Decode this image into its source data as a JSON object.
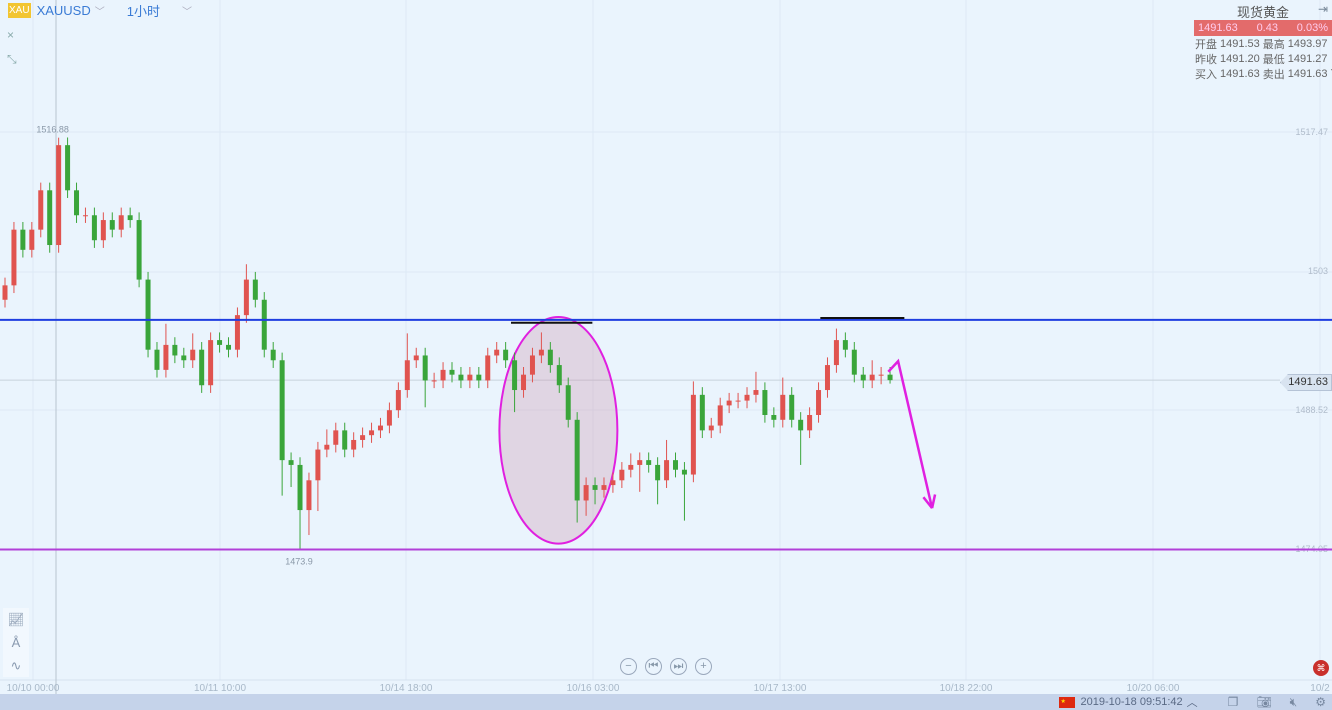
{
  "header": {
    "badge": "XAU",
    "symbol": "XAUUSD",
    "timeframe": "1小时"
  },
  "left_tools": {
    "close": "×",
    "collapse": "⤡"
  },
  "dock": {
    "items": [
      "indicator-icon",
      "drawing-icon",
      "wave-icon"
    ]
  },
  "quote": {
    "title": "现货黄金",
    "price": "1491.63",
    "change": "0.43",
    "change_pct": "0.03%",
    "rows": [
      {
        "l1": "开盘",
        "v1": "1491.53",
        "l2": "最高",
        "v2": "1493.97"
      },
      {
        "l1": "昨收",
        "v1": "1491.20",
        "l2": "最低",
        "v2": "1491.27"
      },
      {
        "l1": "买入",
        "v1": "1491.63",
        "l2": "卖出",
        "v2": "1491.63"
      }
    ]
  },
  "zoom_controls": [
    "−",
    "⏮",
    "⏭",
    "+"
  ],
  "status": {
    "datetime": "2019-10-18 09:51:42"
  },
  "colors": {
    "up": "#e0534f",
    "down": "#3aa53a",
    "accent": "#3a7bd5"
  },
  "chart_data": {
    "type": "candlestick",
    "symbol": "XAUUSD",
    "interval": "1小时",
    "x_ticks": [
      "10/10 00:00",
      "10/11 10:00",
      "10/14 18:00",
      "10/16 03:00",
      "10/17 13:00",
      "10/18 22:00",
      "10/20 06:00",
      "10/2"
    ],
    "y_ticks": [
      "1517.47",
      "1503",
      "1488.52",
      "1474.05"
    ],
    "ylim": [
      1472.5,
      1531.2
    ],
    "high_label": "1516.88",
    "low_label": "1473.9",
    "last_price": "1491.63",
    "grid": true,
    "ohlc": [
      [
        1500.0,
        1502.3,
        1499.2,
        1501.5
      ],
      [
        1501.5,
        1508.1,
        1500.7,
        1507.3
      ],
      [
        1507.3,
        1508.1,
        1504.4,
        1505.2
      ],
      [
        1505.2,
        1508.1,
        1504.4,
        1507.3
      ],
      [
        1507.3,
        1512.2,
        1506.5,
        1511.4
      ],
      [
        1511.4,
        1512.2,
        1504.9,
        1505.7
      ],
      [
        1505.7,
        1516.88,
        1504.9,
        1516.1
      ],
      [
        1516.1,
        1516.9,
        1510.6,
        1511.4
      ],
      [
        1511.4,
        1512.2,
        1508.0,
        1508.8
      ],
      [
        1508.8,
        1509.6,
        1508.0,
        1508.8
      ],
      [
        1508.8,
        1509.6,
        1505.4,
        1506.2
      ],
      [
        1506.2,
        1509.1,
        1505.4,
        1508.3
      ],
      [
        1508.3,
        1509.1,
        1506.5,
        1507.3
      ],
      [
        1507.3,
        1509.6,
        1506.5,
        1508.8
      ],
      [
        1508.8,
        1509.6,
        1507.5,
        1508.3
      ],
      [
        1508.3,
        1509.1,
        1501.3,
        1502.1
      ],
      [
        1502.1,
        1502.9,
        1494.0,
        1494.8
      ],
      [
        1494.8,
        1495.6,
        1491.9,
        1492.7
      ],
      [
        1492.7,
        1497.5,
        1491.9,
        1495.3
      ],
      [
        1495.3,
        1496.1,
        1493.4,
        1494.2
      ],
      [
        1494.2,
        1495.0,
        1492.9,
        1493.7
      ],
      [
        1493.7,
        1496.5,
        1492.9,
        1494.8
      ],
      [
        1494.8,
        1495.6,
        1490.3,
        1491.1
      ],
      [
        1491.1,
        1496.6,
        1490.3,
        1495.8
      ],
      [
        1495.8,
        1496.6,
        1494.5,
        1495.3
      ],
      [
        1495.3,
        1496.1,
        1494.0,
        1494.8
      ],
      [
        1494.8,
        1499.2,
        1494.0,
        1498.4
      ],
      [
        1498.4,
        1503.7,
        1497.6,
        1502.1
      ],
      [
        1502.1,
        1502.9,
        1499.2,
        1500.0
      ],
      [
        1500.0,
        1500.8,
        1494.0,
        1494.8
      ],
      [
        1494.8,
        1495.6,
        1492.9,
        1493.7
      ],
      [
        1493.7,
        1494.5,
        1479.6,
        1483.3
      ],
      [
        1483.3,
        1484.1,
        1480.5,
        1482.8
      ],
      [
        1482.8,
        1483.6,
        1473.9,
        1478.1
      ],
      [
        1478.1,
        1482.0,
        1475.5,
        1481.2
      ],
      [
        1481.2,
        1485.2,
        1478.0,
        1484.4
      ],
      [
        1484.4,
        1486.5,
        1483.6,
        1484.9
      ],
      [
        1484.9,
        1487.2,
        1484.1,
        1486.4
      ],
      [
        1486.4,
        1487.2,
        1483.6,
        1484.4
      ],
      [
        1484.4,
        1486.2,
        1483.6,
        1485.4
      ],
      [
        1485.4,
        1486.7,
        1484.6,
        1485.9
      ],
      [
        1485.9,
        1487.2,
        1485.1,
        1486.4
      ],
      [
        1486.4,
        1487.7,
        1485.6,
        1486.9
      ],
      [
        1486.9,
        1489.3,
        1486.1,
        1488.5
      ],
      [
        1488.5,
        1491.4,
        1487.7,
        1490.6
      ],
      [
        1490.6,
        1496.5,
        1489.8,
        1493.7
      ],
      [
        1493.7,
        1495.0,
        1492.9,
        1494.2
      ],
      [
        1494.2,
        1495.0,
        1488.8,
        1491.6
      ],
      [
        1491.6,
        1492.4,
        1490.8,
        1491.6
      ],
      [
        1491.6,
        1493.5,
        1490.8,
        1492.7
      ],
      [
        1492.7,
        1493.5,
        1491.4,
        1492.2
      ],
      [
        1492.2,
        1493.0,
        1490.8,
        1491.6
      ],
      [
        1491.6,
        1493.0,
        1490.8,
        1492.2
      ],
      [
        1492.2,
        1493.0,
        1490.8,
        1491.6
      ],
      [
        1491.6,
        1495.0,
        1490.8,
        1494.2
      ],
      [
        1494.2,
        1495.6,
        1493.4,
        1494.8
      ],
      [
        1494.8,
        1495.6,
        1492.9,
        1493.7
      ],
      [
        1493.7,
        1494.5,
        1488.3,
        1490.6
      ],
      [
        1490.6,
        1493.0,
        1489.8,
        1492.2
      ],
      [
        1492.2,
        1495.0,
        1491.4,
        1494.2
      ],
      [
        1494.2,
        1496.6,
        1493.4,
        1494.8
      ],
      [
        1494.8,
        1495.6,
        1492.4,
        1493.2
      ],
      [
        1493.2,
        1494.0,
        1490.3,
        1491.1
      ],
      [
        1491.1,
        1491.9,
        1486.7,
        1487.5
      ],
      [
        1487.5,
        1488.3,
        1476.8,
        1479.1
      ],
      [
        1479.1,
        1481.5,
        1477.5,
        1480.7
      ],
      [
        1480.7,
        1481.5,
        1478.7,
        1480.2
      ],
      [
        1480.2,
        1481.5,
        1479.4,
        1480.7
      ],
      [
        1480.7,
        1482.0,
        1479.9,
        1481.2
      ],
      [
        1481.2,
        1483.1,
        1480.4,
        1482.3
      ],
      [
        1482.3,
        1484.0,
        1481.5,
        1482.8
      ],
      [
        1482.8,
        1484.1,
        1480.0,
        1483.3
      ],
      [
        1483.3,
        1484.1,
        1482.0,
        1482.8
      ],
      [
        1482.8,
        1483.6,
        1478.7,
        1481.2
      ],
      [
        1481.2,
        1485.4,
        1480.4,
        1483.3
      ],
      [
        1483.3,
        1484.1,
        1481.5,
        1482.3
      ],
      [
        1482.3,
        1483.1,
        1477.0,
        1481.8
      ],
      [
        1481.8,
        1491.5,
        1481.0,
        1490.1
      ],
      [
        1490.1,
        1490.9,
        1485.6,
        1486.4
      ],
      [
        1486.4,
        1487.7,
        1485.6,
        1486.9
      ],
      [
        1486.9,
        1489.8,
        1486.1,
        1489.0
      ],
      [
        1489.0,
        1490.3,
        1488.2,
        1489.5
      ],
      [
        1489.5,
        1490.3,
        1488.7,
        1489.5
      ],
      [
        1489.5,
        1490.9,
        1488.7,
        1490.1
      ],
      [
        1490.1,
        1492.5,
        1489.3,
        1490.6
      ],
      [
        1490.6,
        1491.4,
        1487.2,
        1488.0
      ],
      [
        1488.0,
        1488.8,
        1486.7,
        1487.5
      ],
      [
        1487.5,
        1491.9,
        1486.7,
        1490.1
      ],
      [
        1490.1,
        1490.9,
        1486.7,
        1487.5
      ],
      [
        1487.5,
        1488.3,
        1482.8,
        1486.4
      ],
      [
        1486.4,
        1488.8,
        1485.6,
        1488.0
      ],
      [
        1488.0,
        1491.4,
        1487.2,
        1490.6
      ],
      [
        1490.6,
        1494.0,
        1489.8,
        1493.2
      ],
      [
        1493.2,
        1497.0,
        1492.4,
        1495.8
      ],
      [
        1495.8,
        1496.6,
        1494.0,
        1494.8
      ],
      [
        1494.8,
        1495.6,
        1491.4,
        1492.2
      ],
      [
        1492.2,
        1493.0,
        1490.8,
        1491.6
      ],
      [
        1491.6,
        1493.7,
        1490.8,
        1492.2
      ],
      [
        1492.2,
        1493.0,
        1491.2,
        1492.2
      ],
      [
        1492.2,
        1493.0,
        1491.27,
        1491.63
      ]
    ],
    "annotations": {
      "hlines": [
        {
          "price": 1497.9,
          "color": "#1f3ee0"
        },
        {
          "price": 1474.0,
          "color": "#b23fd8"
        }
      ],
      "segments": [
        {
          "from": 56.6,
          "to": 65.7,
          "price": 1497.6,
          "color": "#111111"
        },
        {
          "from": 91.2,
          "to": 100.6,
          "price": 1498.1,
          "color": "#111111"
        }
      ],
      "ellipse": {
        "center_index": 61.9,
        "center_price": 1486.4,
        "index_radius": 6.6,
        "price_radius": 11.8,
        "stroke": "#e020e0",
        "fill": "#c98fa8"
      },
      "arrow": {
        "points": [
          [
            98.8,
            1492.5
          ],
          [
            99.9,
            1493.6
          ],
          [
            103.7,
            1478.3
          ]
        ],
        "color": "#e020e0"
      }
    }
  }
}
